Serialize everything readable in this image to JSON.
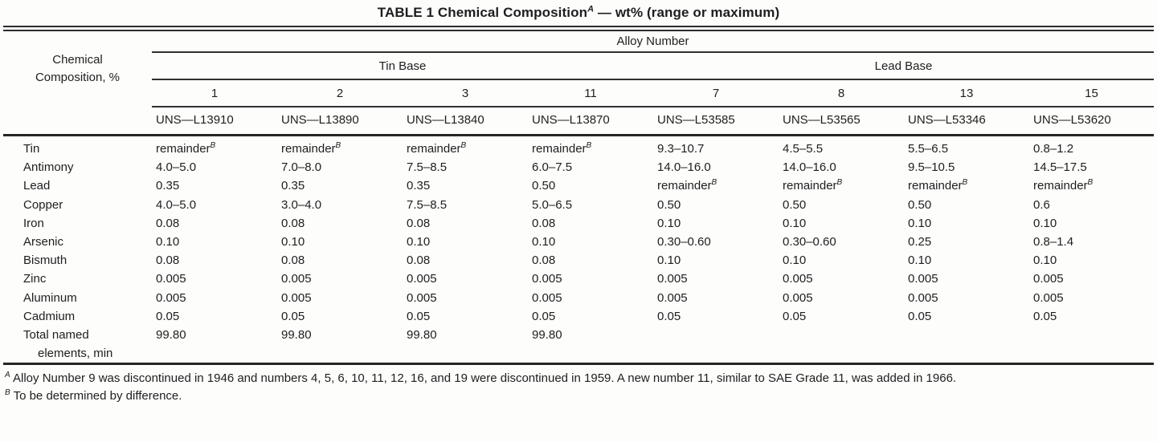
{
  "title": {
    "text": "TABLE 1 Chemical Composition",
    "sup": "A",
    "rest": " — wt% (range or maximum)"
  },
  "table": {
    "corner_label": "Chemical Composition, %",
    "alloy_header": "Alloy Number",
    "groups": [
      {
        "label": "Tin Base"
      },
      {
        "label": "Lead Base"
      }
    ],
    "alloy_numbers": [
      "1",
      "2",
      "3",
      "11",
      "7",
      "8",
      "13",
      "15"
    ],
    "uns_numbers": [
      "UNS—L13910",
      "UNS—L13890",
      "UNS—L13840",
      "UNS—L13870",
      "UNS—L53585",
      "UNS—L53565",
      "UNS—L53346",
      "UNS—L53620"
    ],
    "rows": [
      {
        "label": "Tin",
        "values": [
          "remainder^B",
          "remainder^B",
          "remainder^B",
          "remainder^B",
          "9.3–10.7",
          "4.5–5.5",
          "5.5–6.5",
          "0.8–1.2"
        ]
      },
      {
        "label": "Antimony",
        "values": [
          "4.0–5.0",
          "7.0–8.0",
          "7.5–8.5",
          "6.0–7.5",
          "14.0–16.0",
          "14.0–16.0",
          "9.5–10.5",
          "14.5–17.5"
        ]
      },
      {
        "label": "Lead",
        "values": [
          "0.35",
          "0.35",
          "0.35",
          "0.50",
          "remainder^B",
          "remainder^B",
          "remainder^B",
          "remainder^B"
        ]
      },
      {
        "label": "Copper",
        "values": [
          "4.0–5.0",
          "3.0–4.0",
          "7.5–8.5",
          "5.0–6.5",
          "0.50",
          "0.50",
          "0.50",
          "0.6"
        ]
      },
      {
        "label": "Iron",
        "values": [
          "0.08",
          "0.08",
          "0.08",
          "0.08",
          "0.10",
          "0.10",
          "0.10",
          "0.10"
        ]
      },
      {
        "label": "Arsenic",
        "values": [
          "0.10",
          "0.10",
          "0.10",
          "0.10",
          "0.30–0.60",
          "0.30–0.60",
          "0.25",
          "0.8–1.4"
        ]
      },
      {
        "label": "Bismuth",
        "values": [
          "0.08",
          "0.08",
          "0.08",
          "0.08",
          "0.10",
          "0.10",
          "0.10",
          "0.10"
        ]
      },
      {
        "label": "Zinc",
        "values": [
          "0.005",
          "0.005",
          "0.005",
          "0.005",
          "0.005",
          "0.005",
          "0.005",
          "0.005"
        ]
      },
      {
        "label": "Aluminum",
        "values": [
          "0.005",
          "0.005",
          "0.005",
          "0.005",
          "0.005",
          "0.005",
          "0.005",
          "0.005"
        ]
      },
      {
        "label": "Cadmium",
        "values": [
          "0.05",
          "0.05",
          "0.05",
          "0.05",
          "0.05",
          "0.05",
          "0.05",
          "0.05"
        ]
      },
      {
        "label": "Total named elements, min",
        "values": [
          "99.80",
          "99.80",
          "99.80",
          "99.80",
          "",
          "",
          "",
          ""
        ]
      }
    ]
  },
  "footnotes": [
    {
      "marker": "A",
      "text": "Alloy Number 9 was discontinued in 1946 and numbers 4, 5, 6, 10, 11, 12, 16, and 19 were discontinued in 1959. A new number 11, similar to SAE Grade 11, was added in 1966."
    },
    {
      "marker": "B",
      "text": "To be determined by difference."
    }
  ]
}
